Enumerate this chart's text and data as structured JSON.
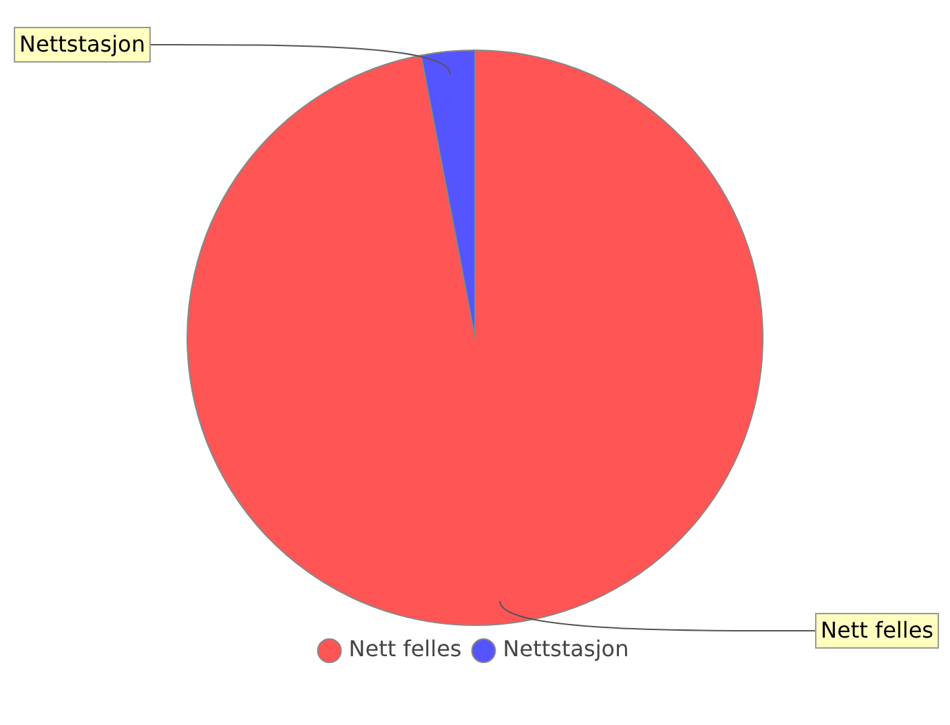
{
  "chart_data": {
    "type": "pie",
    "categories": [
      "Nett felles",
      "Nettstasjon"
    ],
    "values": [
      97,
      3
    ],
    "colors": [
      "#ff5555",
      "#5555ff"
    ],
    "legend": "bottom"
  }
}
